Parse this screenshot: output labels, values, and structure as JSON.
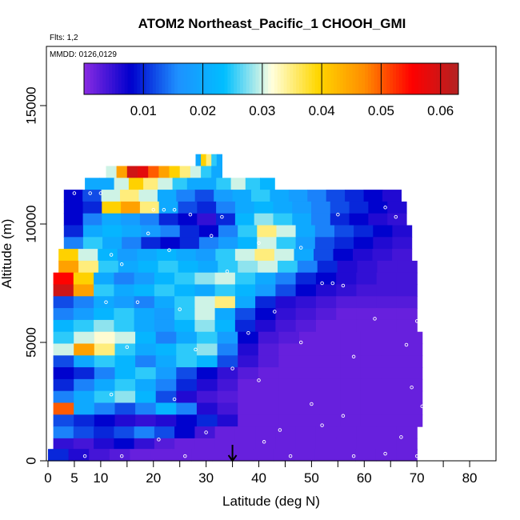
{
  "chart_data": {
    "type": "heatmap",
    "title": "ATOM2 Northeast_Pacific_1 CHOOH_GMI",
    "flights_note": "Flts: 1,2",
    "date_note": "MMDD: 0126,0129",
    "xlabel": "Latitude (deg N)",
    "ylabel": "Altitude (m)",
    "xlim": [
      0,
      85
    ],
    "ylim": [
      0,
      17500
    ],
    "x_ticks": [
      0,
      5,
      10,
      20,
      30,
      40,
      50,
      60,
      70,
      80
    ],
    "x_minor_ticks": [
      15,
      25,
      35,
      45,
      55,
      65,
      75
    ],
    "y_ticks": [
      0,
      5000,
      10000,
      15000
    ],
    "colorbar": {
      "min": 0,
      "max": 0.063,
      "ticks": [
        0.01,
        0.02,
        0.03,
        0.04,
        0.05,
        0.06
      ],
      "colors": [
        "#8a2be2",
        "#0000cd",
        "#1e90ff",
        "#00bfff",
        "#ffffe0",
        "#ffd700",
        "#ff8c00",
        "#ff0000",
        "#b22222"
      ]
    },
    "marker_latitude": 35,
    "rows": [
      {
        "alt": 12700,
        "lat_start": 28,
        "lat_end": 33,
        "values": [
          0.02,
          0.04,
          0.035,
          0.025,
          0.02
        ]
      },
      {
        "alt": 12200,
        "lat_start": 11,
        "lat_end": 33,
        "values": [
          0.03,
          0.045,
          0.06,
          0.058,
          0.05,
          0.045,
          0.04,
          0.035,
          0.03,
          0.025,
          0.02
        ]
      },
      {
        "alt": 11700,
        "lat_start": 7,
        "lat_end": 43,
        "values": [
          0.02,
          0.02,
          0.03,
          0.04,
          0.035,
          0.03,
          0.025,
          0.02,
          0.02,
          0.025,
          0.03,
          0.025,
          0.022
        ]
      },
      {
        "alt": 11200,
        "lat_start": 3,
        "lat_end": 67,
        "values": [
          0.008,
          0.012,
          0.03,
          0.035,
          0.03,
          0.02,
          0.015,
          0.012,
          0.018,
          0.02,
          0.025,
          0.02,
          0.018,
          0.015,
          0.012,
          0.01,
          0.008,
          0.006
        ]
      },
      {
        "alt": 10700,
        "lat_start": 3,
        "lat_end": 68,
        "values": [
          0.008,
          0.01,
          0.04,
          0.045,
          0.035,
          0.02,
          0.012,
          0.01,
          0.015,
          0.02,
          0.022,
          0.02,
          0.018,
          0.015,
          0.012,
          0.01,
          0.008,
          0.006
        ]
      },
      {
        "alt": 10200,
        "lat_start": 3,
        "lat_end": 68,
        "values": [
          0.008,
          0.015,
          0.02,
          0.018,
          0.015,
          0.01,
          0.008,
          0.005,
          0.01,
          0.022,
          0.028,
          0.025,
          0.02,
          0.015,
          0.01,
          0.008,
          0.006,
          0.005
        ]
      },
      {
        "alt": 9700,
        "lat_start": 3,
        "lat_end": 69,
        "values": [
          0.01,
          0.02,
          0.022,
          0.02,
          0.018,
          0.015,
          0.01,
          0.008,
          0.015,
          0.025,
          0.035,
          0.03,
          0.02,
          0.015,
          0.012,
          0.01,
          0.008,
          0.006
        ]
      },
      {
        "alt": 9200,
        "lat_start": 3,
        "lat_end": 69,
        "values": [
          0.015,
          0.025,
          0.02,
          0.015,
          0.01,
          0.008,
          0.01,
          0.015,
          0.018,
          0.022,
          0.03,
          0.025,
          0.018,
          0.012,
          0.01,
          0.008,
          0.006,
          0.005
        ]
      },
      {
        "alt": 8700,
        "lat_start": 2,
        "lat_end": 69,
        "values": [
          0.04,
          0.03,
          0.022,
          0.018,
          0.02,
          0.022,
          0.02,
          0.018,
          0.025,
          0.03,
          0.035,
          0.03,
          0.02,
          0.012,
          0.008,
          0.006,
          0.005,
          0.004
        ]
      },
      {
        "alt": 8200,
        "lat_start": 2,
        "lat_end": 70,
        "values": [
          0.045,
          0.035,
          0.025,
          0.02,
          0.022,
          0.025,
          0.022,
          0.02,
          0.025,
          0.028,
          0.03,
          0.025,
          0.015,
          0.01,
          0.006,
          0.005,
          0.004,
          0.004
        ]
      },
      {
        "alt": 7700,
        "lat_start": 1,
        "lat_end": 70,
        "values": [
          0.055,
          0.04,
          0.02,
          0.015,
          0.018,
          0.022,
          0.025,
          0.028,
          0.03,
          0.025,
          0.02,
          0.015,
          0.01,
          0.008,
          0.006,
          0.005,
          0.004,
          0.004
        ]
      },
      {
        "alt": 7200,
        "lat_start": 1,
        "lat_end": 70,
        "values": [
          0.06,
          0.045,
          0.025,
          0.02,
          0.022,
          0.025,
          0.022,
          0.02,
          0.025,
          0.022,
          0.018,
          0.012,
          0.008,
          0.006,
          0.005,
          0.004,
          0.004,
          0.004
        ]
      },
      {
        "alt": 6700,
        "lat_start": 1,
        "lat_end": 70,
        "values": [
          0.012,
          0.015,
          0.02,
          0.018,
          0.015,
          0.02,
          0.025,
          0.03,
          0.035,
          0.02,
          0.01,
          0.006,
          0.005,
          0.004,
          0.003,
          0.003,
          0.003,
          0.003
        ]
      },
      {
        "alt": 6200,
        "lat_start": 1,
        "lat_end": 70,
        "values": [
          0.015,
          0.018,
          0.022,
          0.025,
          0.02,
          0.018,
          0.025,
          0.03,
          0.02,
          0.012,
          0.008,
          0.005,
          0.004,
          0.003,
          0.002,
          0.002,
          0.002,
          0.002
        ]
      },
      {
        "alt": 5700,
        "lat_start": 1,
        "lat_end": 70,
        "values": [
          0.022,
          0.025,
          0.028,
          0.025,
          0.02,
          0.018,
          0.022,
          0.028,
          0.022,
          0.01,
          0.006,
          0.004,
          0.003,
          0.002,
          0.002,
          0.002,
          0.002,
          0.002
        ]
      },
      {
        "alt": 5200,
        "lat_start": 1,
        "lat_end": 71,
        "values": [
          0.025,
          0.03,
          0.032,
          0.03,
          0.022,
          0.015,
          0.02,
          0.025,
          0.018,
          0.008,
          0.004,
          0.003,
          0.002,
          0.002,
          0.002,
          0.002,
          0.002,
          0.002
        ]
      },
      {
        "alt": 4700,
        "lat_start": 1,
        "lat_end": 71,
        "values": [
          0.03,
          0.045,
          0.035,
          0.025,
          0.02,
          0.022,
          0.025,
          0.028,
          0.015,
          0.006,
          0.003,
          0.002,
          0.002,
          0.002,
          0.002,
          0.002,
          0.002,
          0.002
        ]
      },
      {
        "alt": 4200,
        "lat_start": 1,
        "lat_end": 71,
        "values": [
          0.012,
          0.02,
          0.025,
          0.022,
          0.015,
          0.02,
          0.025,
          0.022,
          0.012,
          0.005,
          0.003,
          0.002,
          0.002,
          0.002,
          0.002,
          0.002,
          0.002,
          0.002
        ]
      },
      {
        "alt": 3700,
        "lat_start": 1,
        "lat_end": 71,
        "values": [
          0.008,
          0.01,
          0.015,
          0.022,
          0.025,
          0.018,
          0.012,
          0.008,
          0.005,
          0.003,
          0.002,
          0.002,
          0.002,
          0.002,
          0.002,
          0.002,
          0.002,
          0.002
        ]
      },
      {
        "alt": 3200,
        "lat_start": 1,
        "lat_end": 71,
        "values": [
          0.01,
          0.015,
          0.02,
          0.025,
          0.02,
          0.015,
          0.01,
          0.006,
          0.004,
          0.002,
          0.002,
          0.002,
          0.002,
          0.002,
          0.002,
          0.002,
          0.002,
          0.002
        ]
      },
      {
        "alt": 2700,
        "lat_start": 1,
        "lat_end": 71,
        "values": [
          0.015,
          0.02,
          0.025,
          0.028,
          0.022,
          0.012,
          0.006,
          0.004,
          0.003,
          0.002,
          0.002,
          0.002,
          0.002,
          0.002,
          0.002,
          0.002,
          0.002,
          0.002
        ]
      },
      {
        "alt": 2200,
        "lat_start": 1,
        "lat_end": 71,
        "values": [
          0.05,
          0.02,
          0.015,
          0.012,
          0.015,
          0.022,
          0.015,
          0.006,
          0.004,
          0.002,
          0.002,
          0.002,
          0.002,
          0.002,
          0.002,
          0.002,
          0.002,
          0.002
        ]
      },
      {
        "alt": 1700,
        "lat_start": 1,
        "lat_end": 71,
        "values": [
          0.012,
          0.01,
          0.008,
          0.006,
          0.005,
          0.006,
          0.008,
          0.01,
          0.006,
          0.002,
          0.002,
          0.002,
          0.002,
          0.002,
          0.002,
          0.002,
          0.002,
          0.002
        ]
      },
      {
        "alt": 1200,
        "lat_start": 1,
        "lat_end": 70,
        "values": [
          0.015,
          0.012,
          0.01,
          0.012,
          0.015,
          0.012,
          0.008,
          0.004,
          0.002,
          0.002,
          0.002,
          0.002,
          0.002,
          0.002,
          0.002,
          0.002,
          0.002,
          0.002
        ]
      },
      {
        "alt": 700,
        "lat_start": 1,
        "lat_end": 70,
        "values": [
          0.005,
          0.004,
          0.006,
          0.008,
          0.005,
          0.003,
          0.002,
          0.002,
          0.002,
          0.002,
          0.002,
          0.002,
          0.002,
          0.002,
          0.002,
          0.002,
          0.002,
          0.002
        ]
      },
      {
        "alt": 250,
        "lat_start": 0,
        "lat_end": 70,
        "values": [
          0.01,
          0.006,
          0.004,
          0.003,
          0.002,
          0.002,
          0.002,
          0.002,
          0.002,
          0.002,
          0.002,
          0.002,
          0.002,
          0.002,
          0.002,
          0.002,
          0.002,
          0.002
        ]
      }
    ],
    "sample_points": [
      {
        "lat": 2,
        "alt": 11300
      },
      {
        "lat": 5,
        "alt": 11300
      },
      {
        "lat": 8,
        "alt": 11300
      },
      {
        "lat": 10,
        "alt": 11300
      },
      {
        "lat": 20,
        "alt": 10600
      },
      {
        "lat": 22,
        "alt": 10600
      },
      {
        "lat": 24,
        "alt": 10600
      },
      {
        "lat": 27,
        "alt": 10400
      },
      {
        "lat": 33,
        "alt": 10300
      },
      {
        "lat": 55,
        "alt": 10400
      },
      {
        "lat": 66,
        "alt": 10300
      },
      {
        "lat": 64,
        "alt": 10700
      },
      {
        "lat": 19,
        "alt": 9600
      },
      {
        "lat": 31,
        "alt": 9500
      },
      {
        "lat": 40,
        "alt": 9200
      },
      {
        "lat": 48,
        "alt": 9000
      },
      {
        "lat": 12,
        "alt": 8700
      },
      {
        "lat": 23,
        "alt": 8900
      },
      {
        "lat": 14,
        "alt": 8300
      },
      {
        "lat": 34,
        "alt": 8000
      },
      {
        "lat": 52,
        "alt": 7500
      },
      {
        "lat": 54,
        "alt": 7500
      },
      {
        "lat": 56,
        "alt": 7400
      },
      {
        "lat": 17,
        "alt": 6700
      },
      {
        "lat": 11,
        "alt": 6700
      },
      {
        "lat": 25,
        "alt": 6400
      },
      {
        "lat": 43,
        "alt": 6300
      },
      {
        "lat": 62,
        "alt": 6000
      },
      {
        "lat": 70,
        "alt": 5900
      },
      {
        "lat": 38,
        "alt": 5400
      },
      {
        "lat": 48,
        "alt": 5000
      },
      {
        "lat": 68,
        "alt": 4900
      },
      {
        "lat": 15,
        "alt": 4800
      },
      {
        "lat": 28,
        "alt": 4700
      },
      {
        "lat": 58,
        "alt": 4400
      },
      {
        "lat": 35,
        "alt": 3900
      },
      {
        "lat": 40,
        "alt": 3400
      },
      {
        "lat": 69,
        "alt": 3100
      },
      {
        "lat": 12,
        "alt": 2800
      },
      {
        "lat": 24,
        "alt": 2600
      },
      {
        "lat": 50,
        "alt": 2400
      },
      {
        "lat": 71,
        "alt": 2300
      },
      {
        "lat": 56,
        "alt": 1900
      },
      {
        "lat": 52,
        "alt": 1500
      },
      {
        "lat": 44,
        "alt": 1300
      },
      {
        "lat": 30,
        "alt": 1200
      },
      {
        "lat": 21,
        "alt": 900
      },
      {
        "lat": 41,
        "alt": 800
      },
      {
        "lat": 67,
        "alt": 1000
      },
      {
        "lat": 7,
        "alt": 200
      },
      {
        "lat": 14,
        "alt": 200
      },
      {
        "lat": 26,
        "alt": 200
      },
      {
        "lat": 46,
        "alt": 200
      },
      {
        "lat": 58,
        "alt": 200
      },
      {
        "lat": 64,
        "alt": 300
      },
      {
        "lat": 70,
        "alt": 200
      }
    ]
  }
}
